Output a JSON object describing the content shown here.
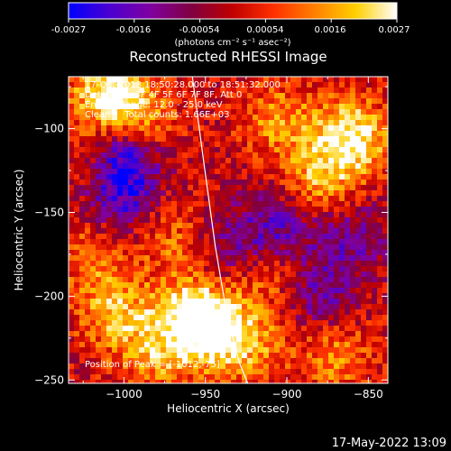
{
  "colorbar": {
    "ticks": [
      "-0.0027",
      "-0.0016",
      "-0.00054",
      "0.00054",
      "0.0016",
      "0.0027"
    ],
    "unit_label": "(photons cm⁻² s⁻¹ asec⁻²)",
    "colors": [
      "#0000ff",
      "#4b00d0",
      "#8000a0",
      "#800040",
      "#c00000",
      "#ff3000",
      "#ff8000",
      "#ffd000",
      "#ffffff"
    ]
  },
  "info_lines": [
    "17-Oct-2013 18:50:28.000 to 18:51:32.000",
    "Detectors: 3F 4F 5F 6F 7F 8F, Att 0",
    "Energy Range: 12.0 - 25.0 keV",
    "Clean     Total counts: 1.66E+03"
  ],
  "peak_label": "Position of Peak = [-1012,-75]",
  "timestamp": "17-May-2022 13:09",
  "chart_data": {
    "type": "heatmap",
    "title": "Reconstructed RHESSI Image",
    "xlabel": "Heliocentric X (arcsec)",
    "ylabel": "Heliocentric Y (arcsec)",
    "xlim": [
      -1034,
      -838
    ],
    "ylim": [
      -252,
      -69
    ],
    "xticks": [
      -1000,
      -950,
      -900,
      -850
    ],
    "yticks": [
      -100,
      -150,
      -200,
      -250
    ],
    "clim": [
      -0.0027,
      0.0027
    ],
    "peak_position": [
      -1012,
      -75
    ],
    "limb_curve": [
      [
        -958,
        -69
      ],
      [
        -951,
        -120
      ],
      [
        -944,
        -170
      ],
      [
        -937,
        -210
      ],
      [
        -929,
        -240
      ],
      [
        -924,
        -252
      ]
    ],
    "brightness_regions": [
      {
        "x": -1010,
        "y": -80,
        "value": 0.0026
      },
      {
        "x": -990,
        "y": -95,
        "value": 0.0018
      },
      {
        "x": -1015,
        "y": -125,
        "value": 0.0014
      },
      {
        "x": -1020,
        "y": -175,
        "value": 0.0012
      },
      {
        "x": -970,
        "y": -165,
        "value": 0.0011
      },
      {
        "x": -960,
        "y": -210,
        "value": 0.002
      },
      {
        "x": -945,
        "y": -220,
        "value": 0.0026
      },
      {
        "x": -1005,
        "y": -210,
        "value": 0.0018
      },
      {
        "x": -980,
        "y": -235,
        "value": 0.0015
      },
      {
        "x": -905,
        "y": -95,
        "value": 0.0015
      },
      {
        "x": -860,
        "y": -105,
        "value": 0.0027
      },
      {
        "x": -880,
        "y": -130,
        "value": 0.0017
      },
      {
        "x": -870,
        "y": -235,
        "value": 0.0014
      },
      {
        "x": -910,
        "y": -185,
        "value": 0.0012
      },
      {
        "x": -920,
        "y": -230,
        "value": 0.0013
      },
      {
        "x": -1000,
        "y": -115,
        "value": -0.0027
      },
      {
        "x": -1005,
        "y": -140,
        "value": -0.0022
      },
      {
        "x": -905,
        "y": -160,
        "value": -0.0017
      },
      {
        "x": -880,
        "y": -200,
        "value": -0.0015
      },
      {
        "x": -935,
        "y": -170,
        "value": -0.0012
      },
      {
        "x": -860,
        "y": -165,
        "value": -0.0013
      }
    ]
  }
}
